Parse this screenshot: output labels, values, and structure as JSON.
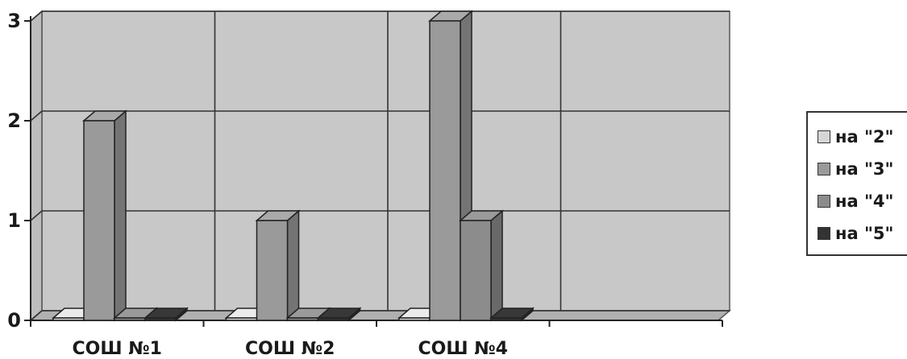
{
  "chart_data": {
    "type": "bar",
    "categories": [
      "СОШ №1",
      "СОШ №2",
      "СОШ №4"
    ],
    "series": [
      {
        "name": "на \"2\"",
        "values": [
          0,
          0,
          0
        ],
        "color": "#d6d6d6"
      },
      {
        "name": "на \"3\"",
        "values": [
          2,
          1,
          3
        ],
        "color": "#9a9a9a"
      },
      {
        "name": "на \"4\"",
        "values": [
          0,
          0,
          1
        ],
        "color": "#8c8c8c"
      },
      {
        "name": "на \"5\"",
        "values": [
          0,
          0,
          0
        ],
        "color": "#333333"
      }
    ],
    "yticks": [
      "0",
      "1",
      "2",
      "3"
    ],
    "ylim": [
      0,
      3
    ],
    "grid": true,
    "legend_position": "right",
    "style": "3d-column"
  }
}
